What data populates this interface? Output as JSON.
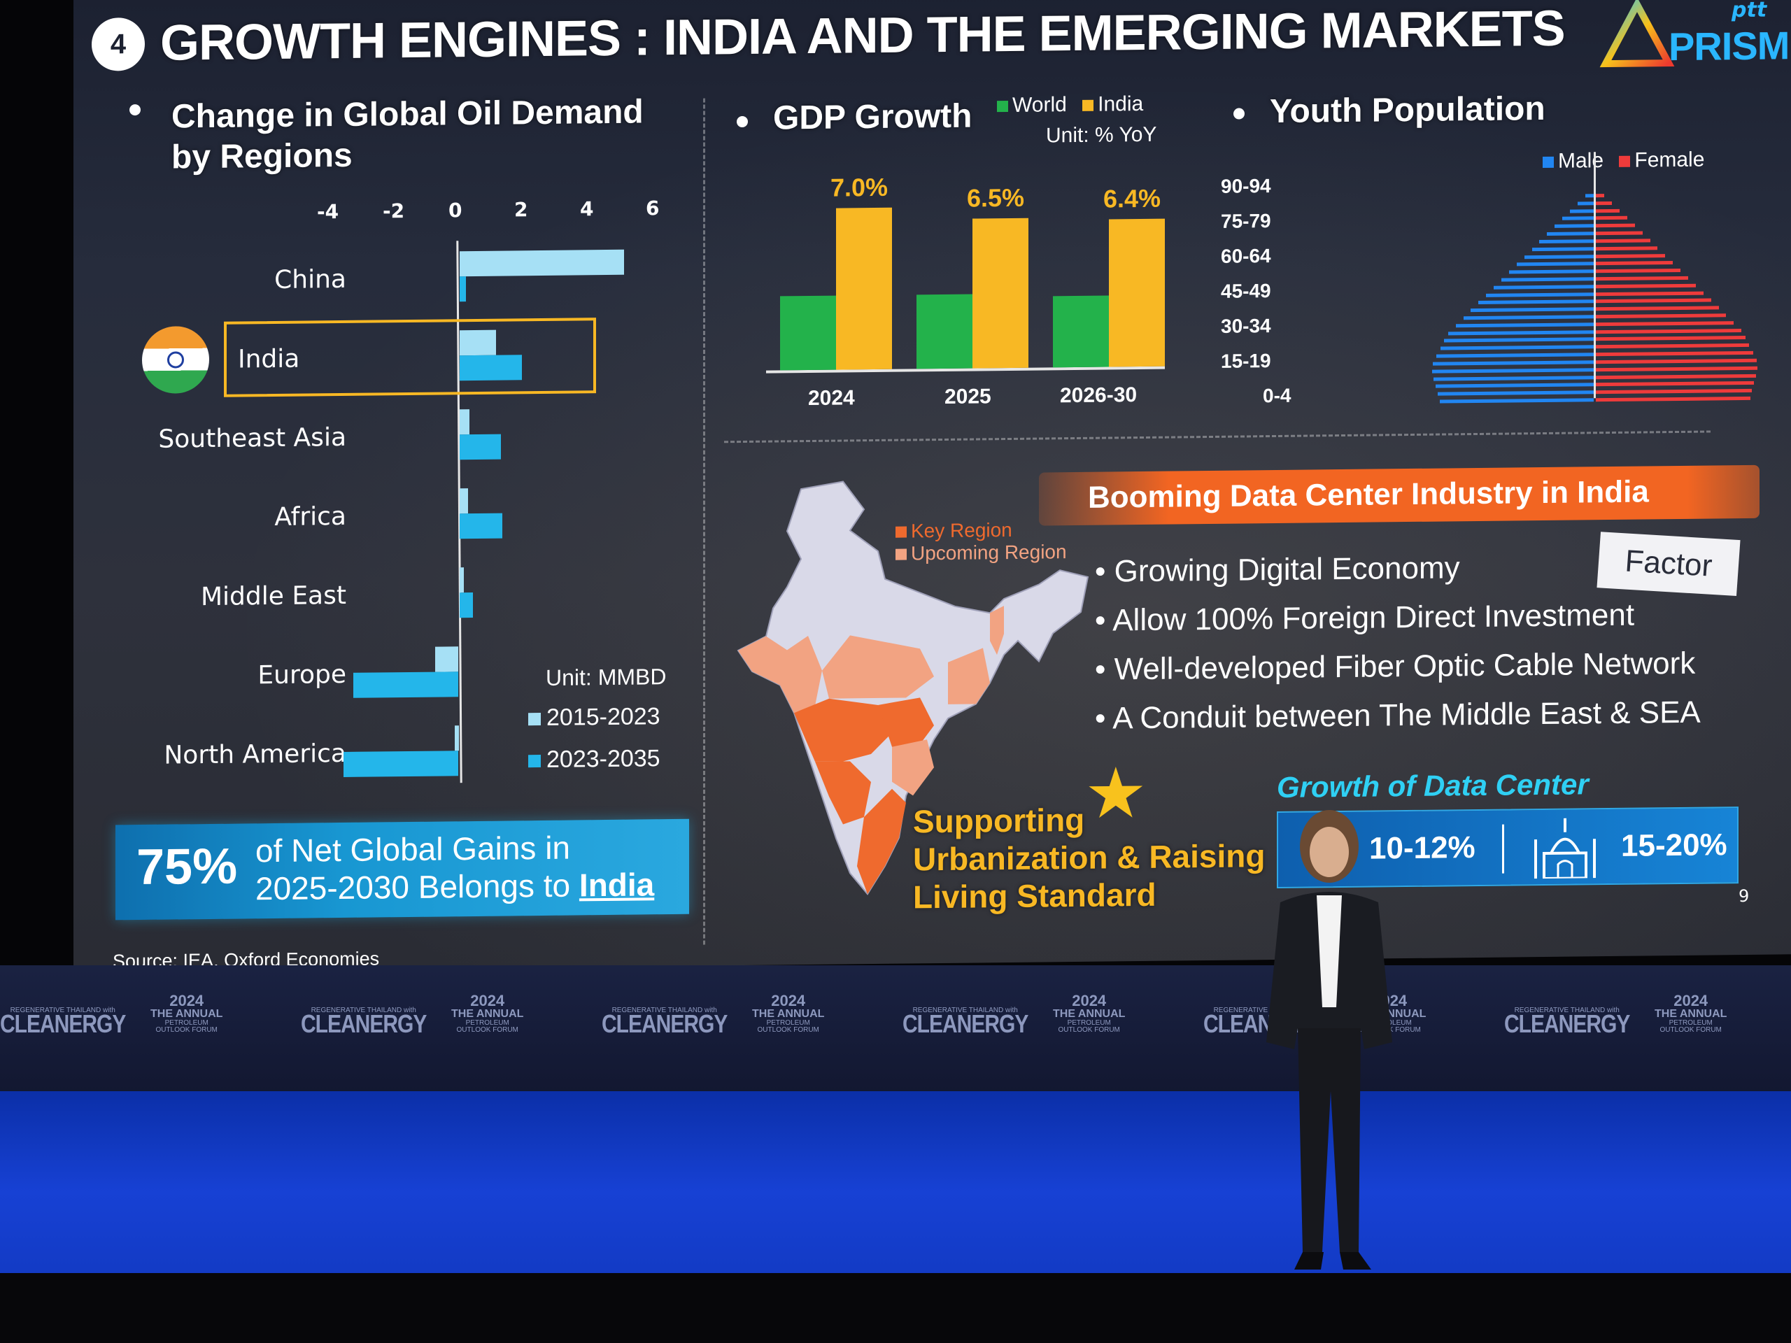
{
  "header": {
    "section_number": "4",
    "title": "GROWTH ENGINES : INDIA AND THE EMERGING MARKETS",
    "logo_small": "ptt",
    "logo_main": "PRISM"
  },
  "oil_demand": {
    "heading_line1": "Change in Global Oil Demand",
    "heading_line2": "by Regions",
    "unit": "Unit: MMBD",
    "legend": [
      "2015-2023",
      "2023-2035"
    ]
  },
  "gdp": {
    "heading": "GDP Growth",
    "legend": [
      "World",
      "India"
    ],
    "unit": "Unit: % YoY",
    "value_labels": [
      "7.0%",
      "6.5%",
      "6.4%"
    ]
  },
  "youth": {
    "heading": "Youth Population",
    "legend": [
      "Male",
      "Female"
    ],
    "age_labels": [
      "90-94",
      "75-79",
      "60-64",
      "45-49",
      "30-34",
      "15-19",
      "0-4"
    ]
  },
  "callout": {
    "percent": "75%",
    "text_line1": "of Net Global Gains in",
    "text_line2": "2025-2030 Belongs to",
    "highlight": "India"
  },
  "source": "Source: IEA, Oxford Economies",
  "map": {
    "legend_key": "Key Region",
    "legend_upcoming": "Upcoming Region",
    "colors": {
      "key": "#ef6a2e",
      "upcoming": "#f2a382",
      "other": "#d9d9e8"
    }
  },
  "data_center": {
    "banner": "Booming Data Center Industry in India",
    "factor_tag": "Factor",
    "bullets": [
      "Growing Digital Economy",
      "Allow 100% Foreign Direct Investment",
      "Well-developed Fiber Optic Cable Network",
      "A Conduit between The Middle East & SEA"
    ],
    "growth_title": "Growth of Data Center",
    "growth_world": "10-12%",
    "growth_india": "15-20%"
  },
  "urbanization": {
    "line1": "Supporting",
    "line2": "Urbanization & Raising",
    "line3": "Living Standard"
  },
  "page_number": "9",
  "led_wall": {
    "brand": "CLEANERGY",
    "brand_small": "REGENERATIVE THAILAND with",
    "year": "2024",
    "event": "THE ANNUAL",
    "event_small1": "PETROLEUM",
    "event_small2": "OUTLOOK FORUM"
  },
  "colors": {
    "cyan": "#24b6ea",
    "world_green": "#23b24b",
    "india_yellow": "#f8b824",
    "female_red": "#ef3b3b",
    "male_blue": "#2186f2",
    "orange_banner": "#f26522",
    "stage_blue": "#1741d4"
  },
  "chart_data": [
    {
      "type": "bar",
      "title": "Change in Global Oil Demand by Regions",
      "orientation": "horizontal",
      "categories": [
        "China",
        "India",
        "Southeast Asia",
        "Africa",
        "Middle East",
        "Europe",
        "North America"
      ],
      "series": [
        {
          "name": "2015-2023",
          "values": [
            5.0,
            1.1,
            0.3,
            0.25,
            0.1,
            -0.7,
            -0.1
          ]
        },
        {
          "name": "2023-2035",
          "values": [
            0.2,
            1.9,
            1.25,
            1.3,
            0.4,
            -3.2,
            -3.5
          ]
        }
      ],
      "xticks": [
        "-4",
        "-2",
        "0",
        "2",
        "4",
        "6"
      ],
      "xlim": [
        -4,
        6
      ],
      "unit": "Unit: MMBD"
    },
    {
      "type": "bar",
      "title": "GDP Growth",
      "categories": [
        "2024",
        "2025",
        "2026-30"
      ],
      "series": [
        {
          "name": "World",
          "values": [
            3.2,
            3.2,
            3.1
          ]
        },
        {
          "name": "India",
          "values": [
            7.0,
            6.5,
            6.4
          ]
        }
      ],
      "unit": "Unit: % YoY",
      "data_labels": [
        "7.0%",
        "6.5%",
        "6.4%"
      ]
    },
    {
      "type": "bar",
      "title": "Youth Population",
      "orientation": "horizontal",
      "subtype": "population-pyramid",
      "categories": [
        "90-94",
        "75-79",
        "60-64",
        "45-49",
        "30-34",
        "15-19",
        "0-4"
      ],
      "series": [
        {
          "name": "Male",
          "values": [
            0.05,
            0.25,
            0.45,
            0.65,
            0.85,
            0.95,
            0.9
          ]
        },
        {
          "name": "Female",
          "values": [
            0.05,
            0.25,
            0.45,
            0.65,
            0.85,
            0.95,
            0.9
          ]
        }
      ]
    }
  ]
}
